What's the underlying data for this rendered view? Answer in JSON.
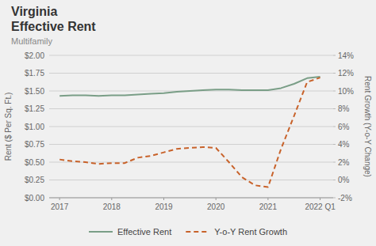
{
  "chart_data": {
    "type": "line",
    "title": [
      "Virginia",
      "Effective Rent"
    ],
    "subtitle": "Multifamily",
    "x": [
      2017.0,
      2017.25,
      2017.5,
      2017.75,
      2018.0,
      2018.25,
      2018.5,
      2018.75,
      2019.0,
      2019.25,
      2019.5,
      2019.75,
      2020.0,
      2020.25,
      2020.5,
      2020.75,
      2021.0,
      2021.25,
      2021.5,
      2021.75,
      2022.0
    ],
    "series": [
      {
        "name": "Effective Rent",
        "color": "#7a9e87",
        "line_style": "solid",
        "values": [
          1.43,
          1.44,
          1.44,
          1.43,
          1.44,
          1.44,
          1.45,
          1.46,
          1.47,
          1.49,
          1.5,
          1.51,
          1.52,
          1.52,
          1.51,
          1.51,
          1.51,
          1.54,
          1.6,
          1.68,
          1.7
        ]
      },
      {
        "name": "Y-o-Y Rent Growth",
        "color": "#c8622a",
        "line_style": "dashed",
        "axis": "y2",
        "values": [
          2.3,
          2.1,
          2.0,
          1.8,
          1.9,
          1.9,
          2.5,
          2.7,
          3.1,
          3.5,
          3.6,
          3.7,
          3.6,
          2.0,
          0.3,
          -0.6,
          -0.8,
          3.5,
          7.2,
          11.0,
          11.5
        ]
      }
    ],
    "xlim": [
      2016.8,
      2022.25
    ],
    "xticks": [
      2017,
      2018,
      2019,
      2020,
      2021,
      {
        "value": 2022,
        "label": "2022 Q1"
      }
    ],
    "ylim": [
      0.0,
      2.0
    ],
    "yticks": [
      {
        "value": 0.0,
        "label": "$0.00"
      },
      {
        "value": 0.25,
        "label": "$0.25"
      },
      {
        "value": 0.5,
        "label": "$0.50"
      },
      {
        "value": 0.75,
        "label": "$0.75"
      },
      {
        "value": 1.0,
        "label": "$1.00"
      },
      {
        "value": 1.25,
        "label": "$1.25"
      },
      {
        "value": 1.5,
        "label": "$1.50"
      },
      {
        "value": 1.75,
        "label": "$1.75"
      },
      {
        "value": 2.0,
        "label": "$2.00"
      }
    ],
    "y_label": "Rent ($ Per Sq. Ft.)",
    "y2lim": [
      -2.0,
      14.0
    ],
    "y2ticks": [
      {
        "value": -2,
        "label": "-2%"
      },
      {
        "value": 0,
        "label": "0%"
      },
      {
        "value": 2,
        "label": "2%"
      },
      {
        "value": 4,
        "label": "4%"
      },
      {
        "value": 6,
        "label": "6%"
      },
      {
        "value": 8,
        "label": "8%"
      },
      {
        "value": 10,
        "label": "10%"
      },
      {
        "value": 12,
        "label": "12%"
      },
      {
        "value": 14,
        "label": "14%"
      }
    ],
    "y2_label": "Rent Growth (Y-o-Y Change)",
    "grid": true,
    "legend": "bottom"
  }
}
